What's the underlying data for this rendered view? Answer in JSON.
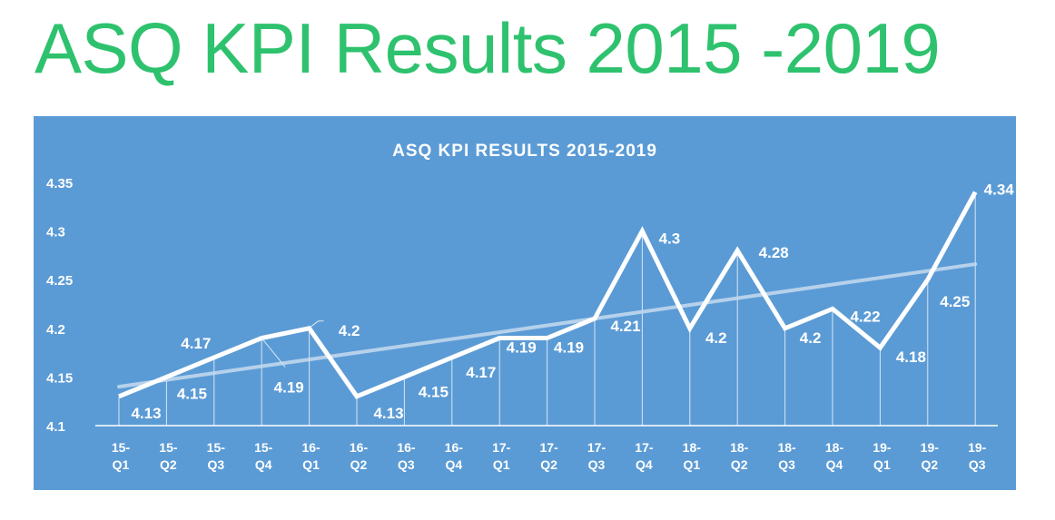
{
  "page": {
    "title": "ASQ KPI Results 2015 -2019"
  },
  "chart_data": {
    "type": "line",
    "title": "ASQ KPI RESULTS 2015-2019",
    "xlabel": "",
    "ylabel": "",
    "categories": [
      [
        "15-",
        "Q1"
      ],
      [
        "15-",
        "Q2"
      ],
      [
        "15-",
        "Q3"
      ],
      [
        "15-",
        "Q4"
      ],
      [
        "16-",
        "Q1"
      ],
      [
        "16-",
        "Q2"
      ],
      [
        "16-",
        "Q3"
      ],
      [
        "16-",
        "Q4"
      ],
      [
        "17-",
        "Q1"
      ],
      [
        "17-",
        "Q2"
      ],
      [
        "17-",
        "Q3"
      ],
      [
        "17-",
        "Q4"
      ],
      [
        "18-",
        "Q1"
      ],
      [
        "18-",
        "Q2"
      ],
      [
        "18-",
        "Q3"
      ],
      [
        "18-",
        "Q4"
      ],
      [
        "19-",
        "Q1"
      ],
      [
        "19-",
        "Q2"
      ],
      [
        "19-",
        "Q3"
      ]
    ],
    "series": [
      {
        "values": [
          4.13,
          4.15,
          4.17,
          4.19,
          4.2,
          4.13,
          4.15,
          4.17,
          4.19,
          4.19,
          4.21,
          4.3,
          4.2,
          4.28,
          4.2,
          4.22,
          4.18,
          4.25,
          4.34
        ]
      }
    ],
    "data_labels": [
      "4.13",
      "4.15",
      "4.17",
      "4.19",
      "4.2",
      "4.13",
      "4.15",
      "4.17",
      "4.19",
      "4.19",
      "4.21",
      "4.3",
      "4.2",
      "4.28",
      "4.2",
      "4.22",
      "4.18",
      "4.25",
      "4.34"
    ],
    "trendline": {
      "type": "linear",
      "start": 4.14,
      "end": 4.266
    },
    "ylim": [
      4.1,
      4.35
    ],
    "yticks": [
      "4.1",
      "4.15",
      "4.2",
      "4.25",
      "4.3",
      "4.35"
    ],
    "grid": false,
    "drop_lines": true,
    "legend": "none",
    "colors": {
      "background": "#5b9bd5",
      "line": "#ffffff",
      "trend": "#c6dbf0",
      "title": "#2ec26e"
    }
  }
}
